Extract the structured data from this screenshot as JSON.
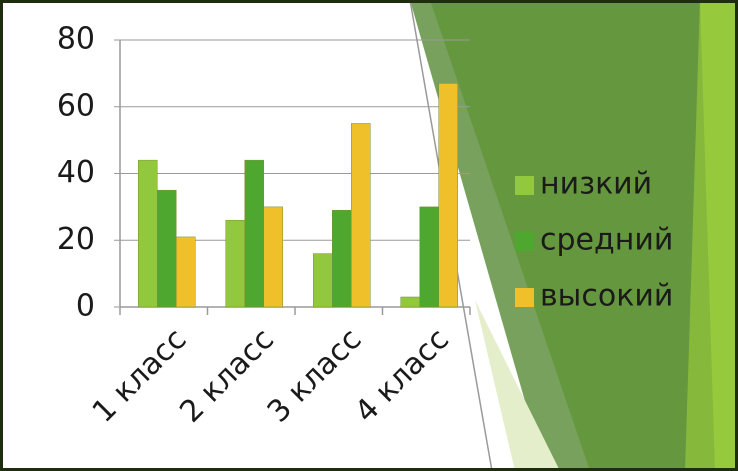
{
  "chart_data": {
    "type": "bar",
    "categories": [
      "1 класс",
      "2 класс",
      "3 класс",
      "4 класс"
    ],
    "series": [
      {
        "name": "низкий",
        "color": "#92c83e",
        "values": [
          44,
          26,
          16,
          3
        ]
      },
      {
        "name": "средний",
        "color": "#4ea72e",
        "values": [
          35,
          44,
          29,
          30
        ]
      },
      {
        "name": "высокий",
        "color": "#f0c02a",
        "values": [
          21,
          30,
          55,
          67
        ]
      }
    ],
    "ylim": [
      0,
      80
    ],
    "yticks": [
      0,
      20,
      40,
      60,
      80
    ],
    "grid": true,
    "legend": "right"
  }
}
